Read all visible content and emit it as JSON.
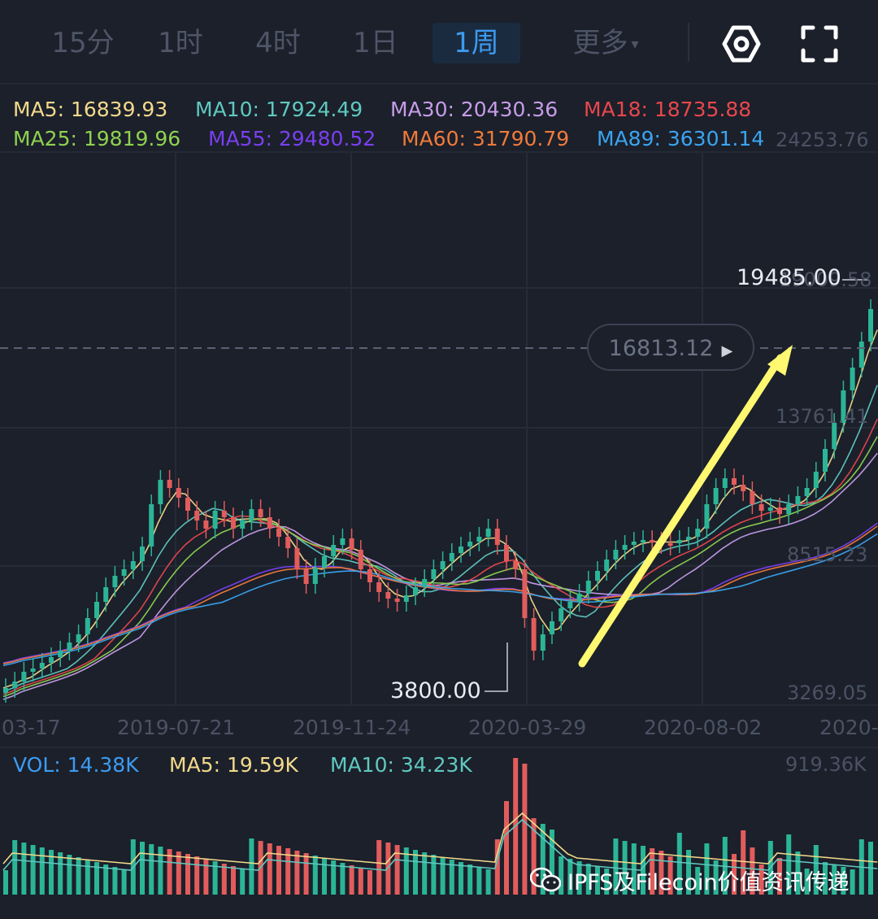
{
  "toolbar": {
    "tabs": [
      {
        "id": "15m",
        "label": "15分"
      },
      {
        "id": "1h",
        "label": "1时"
      },
      {
        "id": "4h",
        "label": "4时"
      },
      {
        "id": "1d",
        "label": "1日"
      },
      {
        "id": "1w",
        "label": "1周"
      },
      {
        "id": "more",
        "label": "更多"
      }
    ],
    "active_tab": "1周",
    "icons": [
      "settings-icon",
      "fullscreen-icon"
    ]
  },
  "ma_legend": {
    "row1": [
      {
        "label": "MA5: 16839.93",
        "color": "#f3d98a"
      },
      {
        "label": "MA10: 17924.49",
        "color": "#5fc9c0"
      },
      {
        "label": "MA30: 20430.36",
        "color": "#c79ce8"
      },
      {
        "label": "MA18: 18735.88",
        "color": "#e8474b"
      }
    ],
    "row2": [
      {
        "label": "MA25: 19819.96",
        "color": "#8fd14f"
      },
      {
        "label": "MA55: 29480.52",
        "color": "#7a3ff0"
      },
      {
        "label": "MA60: 31790.79",
        "color": "#f07a3a"
      },
      {
        "label": "MA89: 36301.14",
        "color": "#3aa4f0"
      }
    ]
  },
  "price_axis": {
    "top": "24253.76",
    "upper": "19009.58",
    "mid": "13761.41",
    "lower": "8515.23",
    "bottom": "3269.05"
  },
  "price_markers": {
    "current": "16813.12",
    "high": "19485.00",
    "low": "3800.00"
  },
  "dates": [
    "03-17",
    "2019-07-21",
    "2019-11-24",
    "2020-03-29",
    "2020-08-02",
    "2020-"
  ],
  "volume_legend": {
    "vol": {
      "label": "VOL: 14.38K",
      "color": "#3d9bf0"
    },
    "ma5": {
      "label": "MA5: 19.59K",
      "color": "#f3d98a"
    },
    "ma10": {
      "label": "MA10: 34.23K",
      "color": "#5fc9c0"
    },
    "axis_max": "919.36K"
  },
  "colors": {
    "up": "#2bb597",
    "down": "#e25c5c",
    "grid": "#252b37",
    "arrow": "#fff870"
  },
  "watermark": "IPFS及Filecoin价值资讯传递"
}
